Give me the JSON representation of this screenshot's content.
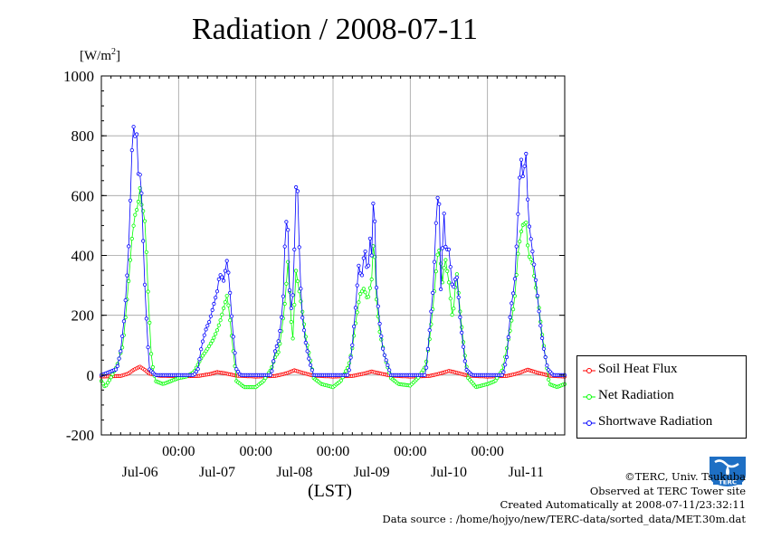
{
  "title": "Radiation / 2008-07-11",
  "y_unit_prefix": "[W/m",
  "y_unit_sup": "2",
  "y_unit_suffix": "]",
  "x_unit": "(LST)",
  "credits": {
    "copyright": "©TERC, Univ. Tsukuba",
    "observed": "Observed at TERC Tower site",
    "created": "Created Automatically at 2008-07-11/23:32:11",
    "source": "Data source : /home/hojyo/new/TERC-data/sorted_data/MET.30m.dat"
  },
  "logo_text": "TERC",
  "chart_data": {
    "type": "line",
    "title": "Radiation / 2008-07-11",
    "ylabel": "[W/m2]",
    "xlabel": "(LST)",
    "ylim": [
      -200,
      1000
    ],
    "yticks": [
      -200,
      0,
      200,
      400,
      600,
      800,
      1000
    ],
    "ytick_labels": [
      "-200",
      "0",
      "200",
      "400",
      "600",
      "800",
      "1000"
    ],
    "xlim": [
      0,
      6
    ],
    "xlim_note": "days from 2008-07-06 00:00 LST",
    "xticks": [
      1,
      2,
      3,
      4,
      5
    ],
    "xtick_time_labels": [
      "00:00",
      "00:00",
      "00:00",
      "00:00",
      "00:00"
    ],
    "xtick_date_labels": [
      "Jul-06",
      "Jul-07",
      "Jul-08",
      "Jul-09",
      "Jul-10",
      "Jul-11"
    ],
    "grid": true,
    "legend_position": "right",
    "series": [
      {
        "name": "Soil Heat Flux",
        "color": "#ff0000",
        "marker": "circle",
        "points": [
          [
            0.0,
            -5
          ],
          [
            0.25,
            -3
          ],
          [
            0.35,
            5
          ],
          [
            0.42,
            18
          ],
          [
            0.5,
            28
          ],
          [
            0.55,
            20
          ],
          [
            0.62,
            5
          ],
          [
            0.75,
            -2
          ],
          [
            1.0,
            -4
          ],
          [
            1.25,
            -3
          ],
          [
            1.4,
            3
          ],
          [
            1.5,
            10
          ],
          [
            1.6,
            6
          ],
          [
            1.75,
            -2
          ],
          [
            2.0,
            -5
          ],
          [
            2.25,
            -3
          ],
          [
            2.4,
            6
          ],
          [
            2.5,
            16
          ],
          [
            2.6,
            8
          ],
          [
            2.75,
            -2
          ],
          [
            3.0,
            -5
          ],
          [
            3.25,
            -3
          ],
          [
            3.4,
            5
          ],
          [
            3.5,
            12
          ],
          [
            3.6,
            6
          ],
          [
            3.75,
            -2
          ],
          [
            4.0,
            -5
          ],
          [
            4.25,
            -3
          ],
          [
            4.4,
            6
          ],
          [
            4.5,
            14
          ],
          [
            4.6,
            8
          ],
          [
            4.75,
            -2
          ],
          [
            5.0,
            -5
          ],
          [
            5.25,
            -3
          ],
          [
            5.4,
            6
          ],
          [
            5.52,
            18
          ],
          [
            5.65,
            8
          ],
          [
            5.8,
            -2
          ],
          [
            6.0,
            -5
          ]
        ]
      },
      {
        "name": "Net Radiation",
        "color": "#00ff00",
        "marker": "circle",
        "points": [
          [
            0.0,
            -20
          ],
          [
            0.05,
            -40
          ],
          [
            0.12,
            -10
          ],
          [
            0.2,
            30
          ],
          [
            0.28,
            100
          ],
          [
            0.35,
            300
          ],
          [
            0.4,
            470
          ],
          [
            0.44,
            540
          ],
          [
            0.47,
            560
          ],
          [
            0.5,
            625
          ],
          [
            0.52,
            570
          ],
          [
            0.55,
            540
          ],
          [
            0.57,
            500
          ],
          [
            0.6,
            300
          ],
          [
            0.65,
            50
          ],
          [
            0.7,
            -20
          ],
          [
            0.8,
            -30
          ],
          [
            0.9,
            -20
          ],
          [
            1.0,
            -10
          ],
          [
            1.1,
            -5
          ],
          [
            1.2,
            10
          ],
          [
            1.3,
            60
          ],
          [
            1.38,
            90
          ],
          [
            1.45,
            120
          ],
          [
            1.5,
            150
          ],
          [
            1.55,
            190
          ],
          [
            1.6,
            240
          ],
          [
            1.63,
            270
          ],
          [
            1.66,
            200
          ],
          [
            1.7,
            100
          ],
          [
            1.75,
            -20
          ],
          [
            1.85,
            -40
          ],
          [
            2.0,
            -40
          ],
          [
            2.1,
            -20
          ],
          [
            2.2,
            20
          ],
          [
            2.25,
            60
          ],
          [
            2.3,
            80
          ],
          [
            2.35,
            180
          ],
          [
            2.38,
            250
          ],
          [
            2.42,
            390
          ],
          [
            2.45,
            200
          ],
          [
            2.48,
            120
          ],
          [
            2.52,
            350
          ],
          [
            2.55,
            300
          ],
          [
            2.6,
            220
          ],
          [
            2.65,
            120
          ],
          [
            2.7,
            60
          ],
          [
            2.75,
            -10
          ],
          [
            2.85,
            -30
          ],
          [
            3.0,
            -40
          ],
          [
            3.1,
            -20
          ],
          [
            3.2,
            30
          ],
          [
            3.25,
            90
          ],
          [
            3.3,
            190
          ],
          [
            3.35,
            270
          ],
          [
            3.4,
            290
          ],
          [
            3.45,
            250
          ],
          [
            3.5,
            320
          ],
          [
            3.53,
            480
          ],
          [
            3.56,
            260
          ],
          [
            3.6,
            150
          ],
          [
            3.68,
            50
          ],
          [
            3.75,
            -10
          ],
          [
            3.85,
            -30
          ],
          [
            4.0,
            -35
          ],
          [
            4.1,
            -10
          ],
          [
            4.2,
            30
          ],
          [
            4.25,
            120
          ],
          [
            4.3,
            240
          ],
          [
            4.35,
            400
          ],
          [
            4.38,
            420
          ],
          [
            4.42,
            300
          ],
          [
            4.45,
            400
          ],
          [
            4.5,
            310
          ],
          [
            4.55,
            180
          ],
          [
            4.6,
            350
          ],
          [
            4.65,
            200
          ],
          [
            4.7,
            80
          ],
          [
            4.75,
            -10
          ],
          [
            4.85,
            -40
          ],
          [
            5.0,
            -30
          ],
          [
            5.1,
            -20
          ],
          [
            5.2,
            20
          ],
          [
            5.3,
            160
          ],
          [
            5.35,
            250
          ],
          [
            5.4,
            420
          ],
          [
            5.45,
            500
          ],
          [
            5.5,
            510
          ],
          [
            5.53,
            400
          ],
          [
            5.58,
            380
          ],
          [
            5.62,
            300
          ],
          [
            5.66,
            240
          ],
          [
            5.7,
            150
          ],
          [
            5.8,
            -30
          ],
          [
            5.9,
            -40
          ],
          [
            6.0,
            -30
          ]
        ]
      },
      {
        "name": "Shortwave Radiation",
        "color": "#0000ff",
        "marker": "circle",
        "points": [
          [
            0.0,
            0
          ],
          [
            0.2,
            20
          ],
          [
            0.25,
            80
          ],
          [
            0.3,
            200
          ],
          [
            0.35,
            400
          ],
          [
            0.38,
            620
          ],
          [
            0.41,
            870
          ],
          [
            0.43,
            750
          ],
          [
            0.45,
            880
          ],
          [
            0.47,
            700
          ],
          [
            0.49,
            640
          ],
          [
            0.51,
            700
          ],
          [
            0.53,
            530
          ],
          [
            0.57,
            250
          ],
          [
            0.62,
            20
          ],
          [
            0.7,
            0
          ],
          [
            1.0,
            0
          ],
          [
            1.2,
            0
          ],
          [
            1.25,
            20
          ],
          [
            1.3,
            100
          ],
          [
            1.35,
            150
          ],
          [
            1.4,
            180
          ],
          [
            1.45,
            230
          ],
          [
            1.5,
            280
          ],
          [
            1.52,
            320
          ],
          [
            1.55,
            340
          ],
          [
            1.58,
            310
          ],
          [
            1.63,
            390
          ],
          [
            1.66,
            300
          ],
          [
            1.7,
            150
          ],
          [
            1.75,
            20
          ],
          [
            1.8,
            0
          ],
          [
            2.0,
            0
          ],
          [
            2.2,
            0
          ],
          [
            2.25,
            80
          ],
          [
            2.3,
            120
          ],
          [
            2.35,
            230
          ],
          [
            2.38,
            470
          ],
          [
            2.41,
            550
          ],
          [
            2.44,
            260
          ],
          [
            2.47,
            200
          ],
          [
            2.5,
            420
          ],
          [
            2.53,
            720
          ],
          [
            2.57,
            360
          ],
          [
            2.6,
            200
          ],
          [
            2.65,
            100
          ],
          [
            2.7,
            40
          ],
          [
            2.75,
            0
          ],
          [
            3.0,
            0
          ],
          [
            3.2,
            0
          ],
          [
            3.25,
            100
          ],
          [
            3.3,
            250
          ],
          [
            3.33,
            370
          ],
          [
            3.37,
            320
          ],
          [
            3.41,
            430
          ],
          [
            3.45,
            330
          ],
          [
            3.48,
            460
          ],
          [
            3.5,
            400
          ],
          [
            3.53,
            650
          ],
          [
            3.56,
            300
          ],
          [
            3.6,
            180
          ],
          [
            3.65,
            80
          ],
          [
            3.75,
            0
          ],
          [
            4.0,
            0
          ],
          [
            4.2,
            0
          ],
          [
            4.25,
            150
          ],
          [
            4.3,
            300
          ],
          [
            4.34,
            550
          ],
          [
            4.37,
            640
          ],
          [
            4.4,
            230
          ],
          [
            4.43,
            580
          ],
          [
            4.46,
            420
          ],
          [
            4.5,
            420
          ],
          [
            4.55,
            280
          ],
          [
            4.6,
            340
          ],
          [
            4.65,
            180
          ],
          [
            4.72,
            20
          ],
          [
            4.8,
            0
          ],
          [
            5.0,
            0
          ],
          [
            5.2,
            0
          ],
          [
            5.25,
            60
          ],
          [
            5.3,
            220
          ],
          [
            5.35,
            300
          ],
          [
            5.4,
            560
          ],
          [
            5.43,
            740
          ],
          [
            5.46,
            660
          ],
          [
            5.5,
            740
          ],
          [
            5.53,
            520
          ],
          [
            5.57,
            440
          ],
          [
            5.6,
            380
          ],
          [
            5.64,
            280
          ],
          [
            5.68,
            180
          ],
          [
            5.72,
            100
          ],
          [
            5.78,
            20
          ],
          [
            5.85,
            0
          ],
          [
            6.0,
            0
          ]
        ]
      }
    ]
  }
}
